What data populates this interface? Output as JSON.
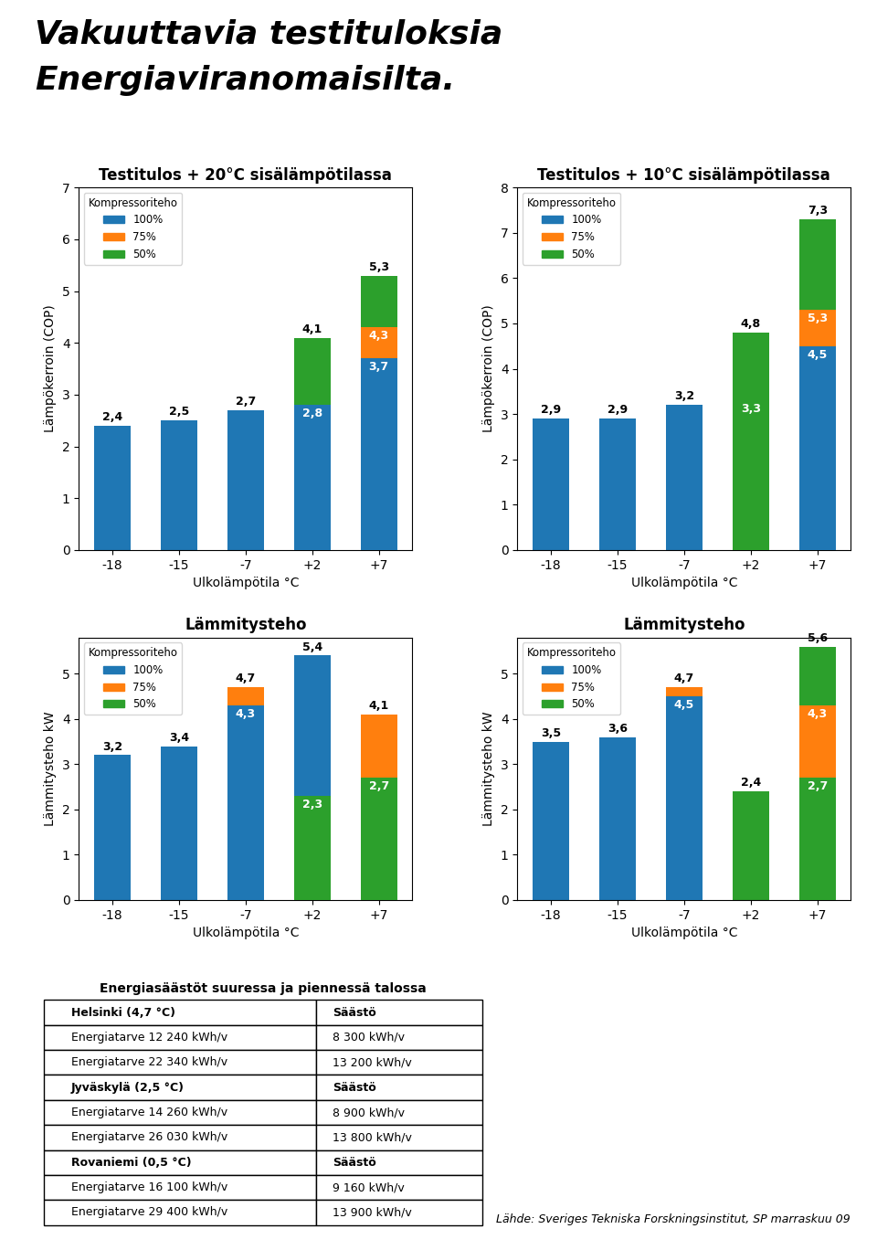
{
  "title": "Vakuuttavia testituloksia",
  "subtitle": "Energiaviranomaisilta.",
  "chart_data": [
    {
      "type": "bar",
      "title": "Testitulos + 20°C sisälämpötilassa",
      "x_label": "Ulkolämpötila °C",
      "y_label": "Lämpökerroin (COP)",
      "categories": [
        "-18",
        "-15",
        "-7",
        "+2",
        "+7"
      ],
      "series": [
        {
          "name": "100%",
          "color": "#1f77b4",
          "values": [
            2.4,
            2.5,
            2.7,
            2.8,
            3.7
          ],
          "value_labels": [
            "2,4",
            "2,5",
            "2,7",
            "2,8",
            "3,7"
          ]
        },
        {
          "name": "75%",
          "color": "#ff7f0e",
          "values": [
            null,
            null,
            null,
            null,
            4.3
          ],
          "value_labels": [
            null,
            null,
            null,
            null,
            "4,3"
          ]
        },
        {
          "name": "50%",
          "color": "#2ca02c",
          "values": [
            null,
            null,
            null,
            4.1,
            5.3
          ],
          "value_labels": [
            null,
            null,
            null,
            "4,1",
            "5,3"
          ]
        }
      ],
      "ylim": [
        0,
        7
      ],
      "yticks": [
        0,
        1,
        2,
        3,
        4,
        5,
        6,
        7
      ],
      "data_labels": true,
      "grid": false,
      "legend": "upper left",
      "legend_title": "Kompressoriteho"
    },
    {
      "type": "bar",
      "title": "Testitulos + 10°C sisälämpötilassa",
      "x_label": "Ulkolämpötila °C",
      "y_label": "Lämpökerroin (COP)",
      "categories": [
        "-18",
        "-15",
        "-7",
        "+2",
        "+7"
      ],
      "series": [
        {
          "name": "100%",
          "color": "#1f77b4",
          "values": [
            2.9,
            2.9,
            3.2,
            null,
            4.5
          ],
          "value_labels": [
            "2,9",
            "2,9",
            "3,2",
            null,
            "4,5"
          ]
        },
        {
          "name": "75%",
          "color": "#ff7f0e",
          "values": [
            null,
            null,
            null,
            null,
            5.3
          ],
          "value_labels": [
            null,
            null,
            null,
            null,
            "5,3"
          ]
        },
        {
          "name": "50%",
          "color": "#2ca02c",
          "values": [
            null,
            null,
            null,
            3.3,
            7.3
          ],
          "value_labels": [
            null,
            null,
            null,
            "3,3",
            "7,3"
          ]
        },
        {
          "name": "50%",
          "color": "#2ca02c",
          "values": [
            null,
            null,
            null,
            4.8,
            null
          ],
          "value_labels": [
            null,
            null,
            null,
            "4,8",
            null
          ]
        }
      ],
      "ylim": [
        0,
        8
      ],
      "yticks": [
        0,
        1,
        2,
        3,
        4,
        5,
        6,
        7,
        8
      ],
      "data_labels": true,
      "grid": false,
      "legend": "upper left",
      "legend_title": "Kompressoriteho"
    },
    {
      "type": "bar",
      "title": "Lämmitysteho",
      "x_label": "Ulkolämpötila °C",
      "y_label": "Lämmitysteho kW",
      "categories": [
        "-18",
        "-15",
        "-7",
        "+2",
        "+7"
      ],
      "series": [
        {
          "name": "100%",
          "color": "#1f77b4",
          "values": [
            3.2,
            3.4,
            4.3,
            5.4,
            null
          ],
          "value_labels": [
            "3,2",
            "3,4",
            "4,3",
            "5,4",
            null
          ]
        },
        {
          "name": "75%",
          "color": "#ff7f0e",
          "values": [
            null,
            null,
            4.7,
            null,
            4.1
          ],
          "value_labels": [
            null,
            null,
            "4,7",
            null,
            "4,1"
          ]
        },
        {
          "name": "50%",
          "color": "#2ca02c",
          "values": [
            null,
            null,
            null,
            2.3,
            2.7
          ],
          "value_labels": [
            null,
            null,
            null,
            "2,3",
            "2,7"
          ]
        }
      ],
      "ylim": [
        0,
        5.8
      ],
      "yticks": [
        0,
        1,
        2,
        3,
        4,
        5
      ],
      "data_labels": true,
      "grid": false,
      "legend": "upper left",
      "legend_title": "Kompressoriteho"
    },
    {
      "type": "bar",
      "title": "Lämmitysteho",
      "x_label": "Ulkolämpötila °C",
      "y_label": "Lämmitysteho kW",
      "categories": [
        "-18",
        "-15",
        "-7",
        "+2",
        "+7"
      ],
      "series": [
        {
          "name": "100%",
          "color": "#1f77b4",
          "values": [
            3.5,
            3.6,
            4.5,
            null,
            null
          ],
          "value_labels": [
            "3,5",
            "3,6",
            "4,5",
            null,
            null
          ]
        },
        {
          "name": "75%",
          "color": "#ff7f0e",
          "values": [
            null,
            null,
            4.7,
            null,
            4.3
          ],
          "value_labels": [
            null,
            null,
            "4,7",
            null,
            "4,3"
          ]
        },
        {
          "name": "50%",
          "color": "#2ca02c",
          "values": [
            null,
            null,
            null,
            2.4,
            2.7
          ],
          "value_labels": [
            null,
            null,
            null,
            "2,4",
            "2,7"
          ]
        },
        {
          "name": "50%",
          "color": "#2ca02c",
          "values": [
            null,
            null,
            null,
            null,
            5.6
          ],
          "value_labels": [
            null,
            null,
            null,
            null,
            "5,6"
          ]
        }
      ],
      "ylim": [
        0,
        5.8
      ],
      "yticks": [
        0,
        1,
        2,
        3,
        4,
        5
      ],
      "data_labels": true,
      "grid": false,
      "legend": "upper left",
      "legend_title": "Kompressoriteho"
    }
  ],
  "table": {
    "title": "Energiasäästöt suuressa ja piennessä talossa",
    "groups": [
      {
        "header": [
          "Helsinki (4,7 °C)",
          "Säästö"
        ],
        "rows": [
          [
            "Energiatarve 12 240 kWh/v",
            "8 300 kWh/v"
          ],
          [
            "Energiatarve 22 340 kWh/v",
            "13 200 kWh/v"
          ]
        ]
      },
      {
        "header": [
          "Jyväskylä (2,5 °C)",
          "Säästö"
        ],
        "rows": [
          [
            "Energiatarve 14 260 kWh/v",
            "8 900 kWh/v"
          ],
          [
            "Energiatarve 26 030 kWh/v",
            "13 800 kWh/v"
          ]
        ]
      },
      {
        "header": [
          "Rovaniemi (0,5 °C)",
          "Säästö"
        ],
        "rows": [
          [
            "Energiatarve 16 100 kWh/v",
            "9 160 kWh/v"
          ],
          [
            "Energiatarve 29 400 kWh/v",
            "13 900 kWh/v"
          ]
        ]
      }
    ]
  },
  "source": "Lähde: Sveriges Tekniska Forskningsinstitut, SP marraskuu 09"
}
